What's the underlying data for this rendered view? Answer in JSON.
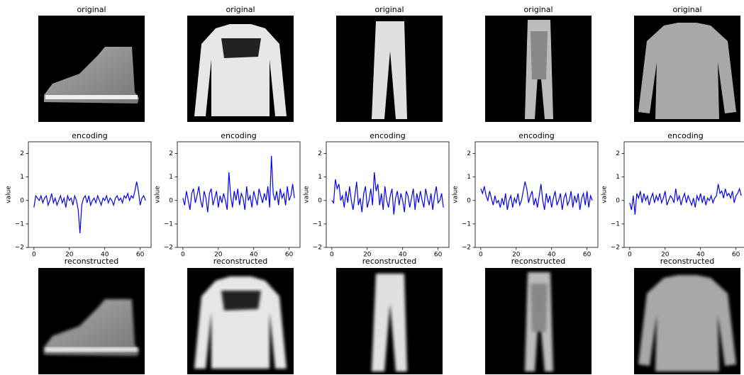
{
  "originals": [
    {
      "title": "original"
    },
    {
      "title": "original"
    },
    {
      "title": "original"
    },
    {
      "title": "original"
    },
    {
      "title": "original"
    }
  ],
  "reconstructions": [
    {
      "title": "reconstructed"
    },
    {
      "title": "reconstructed"
    },
    {
      "title": "reconstructed"
    },
    {
      "title": "reconstructed"
    },
    {
      "title": "reconstructed"
    }
  ],
  "chart_data": [
    {
      "type": "line",
      "title": "encoding",
      "ylabel": "value",
      "color": "#0000ff",
      "x": [
        0,
        1,
        2,
        3,
        4,
        5,
        6,
        7,
        8,
        9,
        10,
        11,
        12,
        13,
        14,
        15,
        16,
        17,
        18,
        19,
        20,
        21,
        22,
        23,
        24,
        25,
        26,
        27,
        28,
        29,
        30,
        31,
        32,
        33,
        34,
        35,
        36,
        37,
        38,
        39,
        40,
        41,
        42,
        43,
        44,
        45,
        46,
        47,
        48,
        49,
        50,
        51,
        52,
        53,
        54,
        55,
        56,
        57,
        58,
        59,
        60,
        61,
        62,
        63
      ],
      "values": [
        -0.3,
        0.2,
        0.1,
        0.0,
        0.2,
        -0.1,
        0.1,
        0.2,
        -0.2,
        0.0,
        0.3,
        -0.1,
        0.1,
        -0.2,
        0.0,
        0.2,
        -0.1,
        0.1,
        -0.3,
        0.2,
        0.0,
        0.1,
        -0.2,
        0.2,
        0.0,
        -0.4,
        -1.4,
        -0.2,
        0.1,
        0.2,
        -0.1,
        0.2,
        -0.2,
        0.0,
        0.1,
        -0.1,
        0.2,
        0.0,
        -0.2,
        0.1,
        0.0,
        0.2,
        -0.1,
        0.1,
        0.0,
        -0.2,
        0.1,
        0.2,
        0.0,
        0.1,
        -0.1,
        0.2,
        0.1,
        0.3,
        0.0,
        0.2,
        0.1,
        0.4,
        0.8,
        0.4,
        -0.2,
        0.1,
        0.2,
        0.0
      ],
      "xlim": [
        -3.15,
        66.15
      ],
      "ylim": [
        -2,
        2.5
      ],
      "xticks": [
        0,
        20,
        40,
        60
      ],
      "yticks": [
        {
          "value": -2,
          "label": "−2"
        },
        {
          "value": -1,
          "label": "−1"
        },
        0,
        1,
        2
      ]
    },
    {
      "type": "line",
      "title": "encoding",
      "ylabel": "value",
      "color": "#0000ff",
      "x": [
        0,
        1,
        2,
        3,
        4,
        5,
        6,
        7,
        8,
        9,
        10,
        11,
        12,
        13,
        14,
        15,
        16,
        17,
        18,
        19,
        20,
        21,
        22,
        23,
        24,
        25,
        26,
        27,
        28,
        29,
        30,
        31,
        32,
        33,
        34,
        35,
        36,
        37,
        38,
        39,
        40,
        41,
        42,
        43,
        44,
        45,
        46,
        47,
        48,
        49,
        50,
        51,
        52,
        53,
        54,
        55,
        56,
        57,
        58,
        59,
        60,
        61,
        62,
        63
      ],
      "values": [
        0.1,
        -0.2,
        0.4,
        0.0,
        -0.4,
        0.3,
        0.5,
        -0.1,
        0.2,
        0.6,
        0.0,
        -0.3,
        0.4,
        0.1,
        -0.5,
        0.3,
        0.5,
        -0.2,
        0.1,
        0.4,
        -0.3,
        0.2,
        -0.1,
        0.3,
        0.0,
        -0.4,
        1.2,
        0.2,
        -0.3,
        0.4,
        0.0,
        0.5,
        -0.2,
        0.3,
        0.1,
        -0.4,
        0.6,
        0.0,
        0.2,
        -0.3,
        0.4,
        0.1,
        -0.2,
        0.5,
        0.2,
        -0.1,
        0.3,
        0.0,
        0.6,
        -0.3,
        1.9,
        0.3,
        0.0,
        0.4,
        -0.2,
        0.5,
        0.1,
        0.3,
        -0.2,
        0.6,
        0.0,
        0.2,
        0.7,
        0.1
      ],
      "xlim": [
        -3.15,
        66.15
      ],
      "ylim": [
        -2,
        2.5
      ],
      "xticks": [
        0,
        20,
        40,
        60
      ],
      "yticks": [
        {
          "value": -2,
          "label": "−2"
        },
        {
          "value": -1,
          "label": "−1"
        },
        0,
        1,
        2
      ]
    },
    {
      "type": "line",
      "title": "encoding",
      "ylabel": "value",
      "color": "#0000ff",
      "x": [
        0,
        1,
        2,
        3,
        4,
        5,
        6,
        7,
        8,
        9,
        10,
        11,
        12,
        13,
        14,
        15,
        16,
        17,
        18,
        19,
        20,
        21,
        22,
        23,
        24,
        25,
        26,
        27,
        28,
        29,
        30,
        31,
        32,
        33,
        34,
        35,
        36,
        37,
        38,
        39,
        40,
        41,
        42,
        43,
        44,
        45,
        46,
        47,
        48,
        49,
        50,
        51,
        52,
        53,
        54,
        55,
        56,
        57,
        58,
        59,
        60,
        61,
        62,
        63
      ],
      "values": [
        0.0,
        -0.1,
        0.9,
        0.5,
        0.7,
        0.0,
        0.2,
        -0.3,
        0.4,
        -0.1,
        0.6,
        0.0,
        -0.4,
        0.2,
        0.8,
        -0.2,
        0.1,
        -0.5,
        0.3,
        0.6,
        -0.3,
        0.0,
        0.5,
        -0.2,
        1.2,
        0.4,
        0.7,
        -0.2,
        0.3,
        -0.4,
        0.6,
        0.0,
        -0.3,
        0.2,
        0.5,
        -0.6,
        0.1,
        0.4,
        -0.2,
        0.3,
        0.0,
        -0.5,
        0.4,
        0.2,
        -0.3,
        0.1,
        0.5,
        -0.4,
        0.3,
        -0.1,
        0.4,
        0.0,
        -0.3,
        0.5,
        0.1,
        -0.2,
        0.3,
        -0.4,
        0.2,
        0.6,
        -0.1,
        0.0,
        0.3,
        -0.3
      ],
      "xlim": [
        -3.15,
        66.15
      ],
      "ylim": [
        -2,
        2.5
      ],
      "xticks": [
        0,
        20,
        40,
        60
      ],
      "yticks": [
        {
          "value": -2,
          "label": "−2"
        },
        {
          "value": -1,
          "label": "−1"
        },
        0,
        1,
        2
      ]
    },
    {
      "type": "line",
      "title": "encoding",
      "ylabel": "value",
      "color": "#0000ff",
      "x": [
        0,
        1,
        2,
        3,
        4,
        5,
        6,
        7,
        8,
        9,
        10,
        11,
        12,
        13,
        14,
        15,
        16,
        17,
        18,
        19,
        20,
        21,
        22,
        23,
        24,
        25,
        26,
        27,
        28,
        29,
        30,
        31,
        32,
        33,
        34,
        35,
        36,
        37,
        38,
        39,
        40,
        41,
        42,
        43,
        44,
        45,
        46,
        47,
        48,
        49,
        50,
        51,
        52,
        53,
        54,
        55,
        56,
        57,
        58,
        59,
        60,
        61,
        62,
        63
      ],
      "values": [
        0.5,
        0.3,
        0.6,
        0.2,
        0.0,
        0.4,
        0.1,
        -0.2,
        0.2,
        -0.1,
        0.0,
        -0.3,
        0.1,
        -0.2,
        0.3,
        -0.4,
        0.0,
        0.2,
        -0.3,
        0.1,
        -0.1,
        0.3,
        -0.2,
        0.0,
        0.4,
        0.8,
        0.5,
        -0.1,
        0.2,
        0.4,
        -0.2,
        0.1,
        -0.3,
        0.2,
        0.7,
        0.0,
        -0.4,
        0.3,
        -0.1,
        0.2,
        -0.3,
        0.1,
        0.4,
        -0.2,
        0.0,
        0.3,
        -0.4,
        0.1,
        0.3,
        -0.2,
        0.0,
        0.4,
        -0.3,
        0.2,
        -0.1,
        0.3,
        -0.4,
        0.1,
        0.3,
        -0.2,
        0.4,
        -0.3,
        0.2,
        0.0
      ],
      "xlim": [
        -3.15,
        66.15
      ],
      "ylim": [
        -2,
        2.5
      ],
      "xticks": [
        0,
        20,
        40,
        60
      ],
      "yticks": [
        {
          "value": -2,
          "label": "−2"
        },
        {
          "value": -1,
          "label": "−1"
        },
        0,
        1,
        2
      ]
    },
    {
      "type": "line",
      "title": "encoding",
      "ylabel": "value",
      "color": "#0000ff",
      "x": [
        0,
        1,
        2,
        3,
        4,
        5,
        6,
        7,
        8,
        9,
        10,
        11,
        12,
        13,
        14,
        15,
        16,
        17,
        18,
        19,
        20,
        21,
        22,
        23,
        24,
        25,
        26,
        27,
        28,
        29,
        30,
        31,
        32,
        33,
        34,
        35,
        36,
        37,
        38,
        39,
        40,
        41,
        42,
        43,
        44,
        45,
        46,
        47,
        48,
        49,
        50,
        51,
        52,
        53,
        54,
        55,
        56,
        57,
        58,
        59,
        60,
        61,
        62,
        63
      ],
      "values": [
        -0.1,
        -0.4,
        0.2,
        -0.6,
        0.3,
        0.1,
        0.4,
        -0.1,
        0.3,
        0.0,
        0.2,
        -0.2,
        0.1,
        0.3,
        -0.1,
        0.2,
        0.0,
        0.3,
        -0.1,
        0.1,
        0.4,
        -0.2,
        0.0,
        0.2,
        0.1,
        -0.1,
        0.5,
        0.0,
        0.2,
        -0.2,
        0.1,
        0.3,
        -0.1,
        0.2,
        0.0,
        -0.2,
        0.1,
        -0.3,
        0.2,
        0.0,
        0.3,
        -0.1,
        0.2,
        -0.2,
        0.1,
        0.0,
        0.2,
        -0.1,
        0.1,
        0.2,
        0.7,
        0.3,
        0.4,
        0.1,
        0.5,
        0.2,
        0.3,
        0.1,
        0.4,
        -0.1,
        0.2,
        0.3,
        0.5,
        0.2
      ],
      "xlim": [
        -3.15,
        66.15
      ],
      "ylim": [
        -2,
        2.5
      ],
      "xticks": [
        0,
        20,
        40,
        60
      ],
      "yticks": [
        {
          "value": -2,
          "label": "−2"
        },
        {
          "value": -1,
          "label": "−1"
        },
        0,
        1,
        2
      ]
    }
  ]
}
